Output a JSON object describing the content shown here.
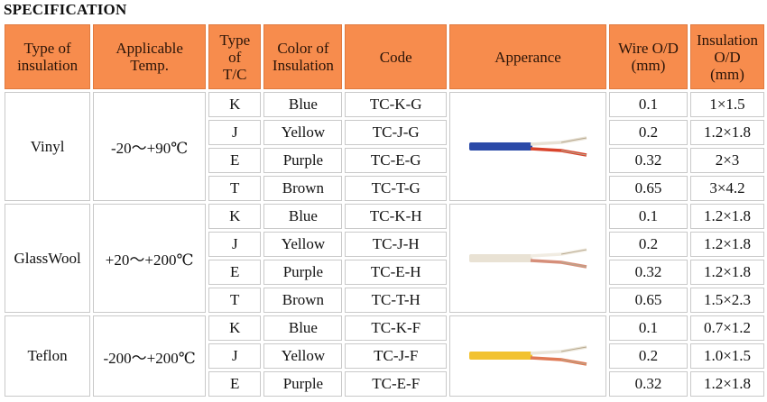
{
  "title": "SPECIFICATION",
  "headers": {
    "type_of_insulation": [
      "Type of",
      "insulation"
    ],
    "applicable_temp": [
      "Applicable",
      "Temp."
    ],
    "type_tc": [
      "Type",
      "of",
      "T/C"
    ],
    "color_of_insulation": [
      "Color of",
      "Insulation"
    ],
    "code": [
      "Code"
    ],
    "appearance": [
      "Apperance"
    ],
    "wire_od": [
      "Wire O/D",
      "(mm)"
    ],
    "insulation_od": [
      "Insulation",
      "O/D",
      "(mm)"
    ]
  },
  "groups": [
    {
      "insulation": "Vinyl",
      "temp": "-20～+90℃",
      "appearance_colors": {
        "jacket": "#2b4aa8",
        "inner1": "#e8e2d6",
        "inner2": "#d9442c"
      },
      "rows": [
        {
          "type": "K",
          "color": "Blue",
          "code": "TC-K-G",
          "wire": "0.1",
          "ins": "1×1.5"
        },
        {
          "type": "J",
          "color": "Yellow",
          "code": "TC-J-G",
          "wire": "0.2",
          "ins": "1.2×1.8"
        },
        {
          "type": "E",
          "color": "Purple",
          "code": "TC-E-G",
          "wire": "0.32",
          "ins": "2×3"
        },
        {
          "type": "T",
          "color": "Brown",
          "code": "TC-T-G",
          "wire": "0.65",
          "ins": "3×4.2"
        }
      ]
    },
    {
      "insulation": "GlassWool",
      "temp": "+20～+200℃",
      "appearance_colors": {
        "jacket": "#e9e2d4",
        "inner1": "#f1ece2",
        "inner2": "#d68f7a"
      },
      "rows": [
        {
          "type": "K",
          "color": "Blue",
          "code": "TC-K-H",
          "wire": "0.1",
          "ins": "1.2×1.8"
        },
        {
          "type": "J",
          "color": "Yellow",
          "code": "TC-J-H",
          "wire": "0.2",
          "ins": "1.2×1.8"
        },
        {
          "type": "E",
          "color": "Purple",
          "code": "TC-E-H",
          "wire": "0.32",
          "ins": "1.2×1.8"
        },
        {
          "type": "T",
          "color": "Brown",
          "code": "TC-T-H",
          "wire": "0.65",
          "ins": "1.5×2.3"
        }
      ]
    },
    {
      "insulation": "Teflon",
      "temp": "-200～+200℃",
      "appearance_colors": {
        "jacket": "#f2c230",
        "inner1": "#ebe6da",
        "inner2": "#e07a55"
      },
      "rows": [
        {
          "type": "K",
          "color": "Blue",
          "code": "TC-K-F",
          "wire": "0.1",
          "ins": "0.7×1.2"
        },
        {
          "type": "J",
          "color": "Yellow",
          "code": "TC-J-F",
          "wire": "0.2",
          "ins": "1.0×1.5"
        },
        {
          "type": "E",
          "color": "Purple",
          "code": "TC-E-F",
          "wire": "0.32",
          "ins": "1.2×1.8"
        }
      ]
    }
  ],
  "colors": {
    "header_bg": "#f78c4d",
    "grid_line": "#c9c9c9"
  }
}
